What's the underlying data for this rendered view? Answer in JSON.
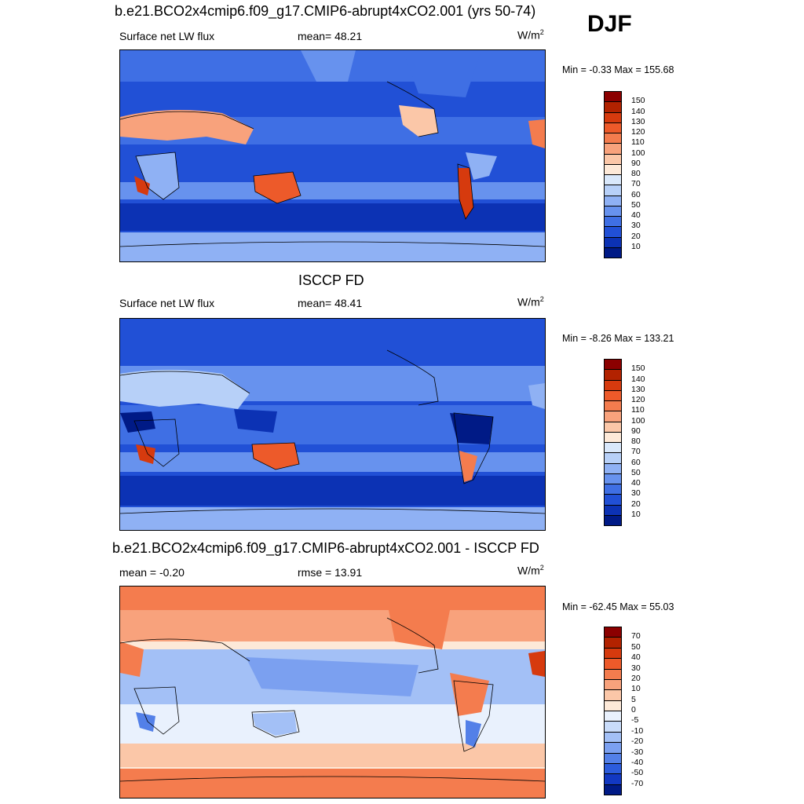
{
  "season": "DJF",
  "panels": [
    {
      "title": "b.e21.BCO2x4cmip6.f09_g17.CMIP6-abrupt4xCO2.001 (yrs 50-74)",
      "left_label": "Surface net LW flux",
      "center_label": "mean=  48.21",
      "units": "W/m",
      "units_exp": "2",
      "minmax": "Min =  -0.33 Max = 155.68",
      "palette": "sequential",
      "colorbar_labels": [
        "150",
        "140",
        "130",
        "120",
        "110",
        "100",
        "90",
        "80",
        "70",
        "60",
        "50",
        "40",
        "30",
        "20",
        "10"
      ],
      "colors": [
        "#8b0000",
        "#b22200",
        "#d63a0e",
        "#ed5a2a",
        "#f47c4e",
        "#f8a27c",
        "#fbc7a8",
        "#fde9d8",
        "#d9e8fb",
        "#b7d0f8",
        "#8fb1f4",
        "#6792ee",
        "#3f6fe4",
        "#2150d6",
        "#0c32b4",
        "#001a86"
      ]
    },
    {
      "title": "ISCCP FD",
      "left_label": "Surface net LW flux",
      "center_label": "mean=  48.41",
      "units": "W/m",
      "units_exp": "2",
      "minmax": "Min =  -8.26 Max = 133.21",
      "palette": "sequential",
      "colorbar_labels": [
        "150",
        "140",
        "130",
        "120",
        "110",
        "100",
        "90",
        "80",
        "70",
        "60",
        "50",
        "40",
        "30",
        "20",
        "10"
      ],
      "colors": [
        "#8b0000",
        "#b22200",
        "#d63a0e",
        "#ed5a2a",
        "#f47c4e",
        "#f8a27c",
        "#fbc7a8",
        "#fde9d8",
        "#d9e8fb",
        "#b7d0f8",
        "#8fb1f4",
        "#6792ee",
        "#3f6fe4",
        "#2150d6",
        "#0c32b4",
        "#001a86"
      ]
    },
    {
      "title": "b.e21.BCO2x4cmip6.f09_g17.CMIP6-abrupt4xCO2.001 - ISCCP FD",
      "left_label": "mean =  -0.20",
      "center_label": "rmse =  13.91",
      "units": "W/m",
      "units_exp": "2",
      "minmax": "Min = -62.45 Max =  55.03",
      "palette": "diverging",
      "colorbar_labels": [
        "70",
        "50",
        "40",
        "30",
        "20",
        "10",
        "5",
        "0",
        "-5",
        "-10",
        "-20",
        "-30",
        "-40",
        "-50",
        "-70"
      ],
      "colors": [
        "#8b0000",
        "#b22200",
        "#d63a0e",
        "#ed5a2a",
        "#f47c4e",
        "#f8a27c",
        "#fbc7a8",
        "#fde9d8",
        "#e9f1fd",
        "#c9dcfa",
        "#a3c0f6",
        "#7ba0f0",
        "#5380e8",
        "#2c5cdc",
        "#1238c2",
        "#001a86"
      ]
    }
  ]
}
